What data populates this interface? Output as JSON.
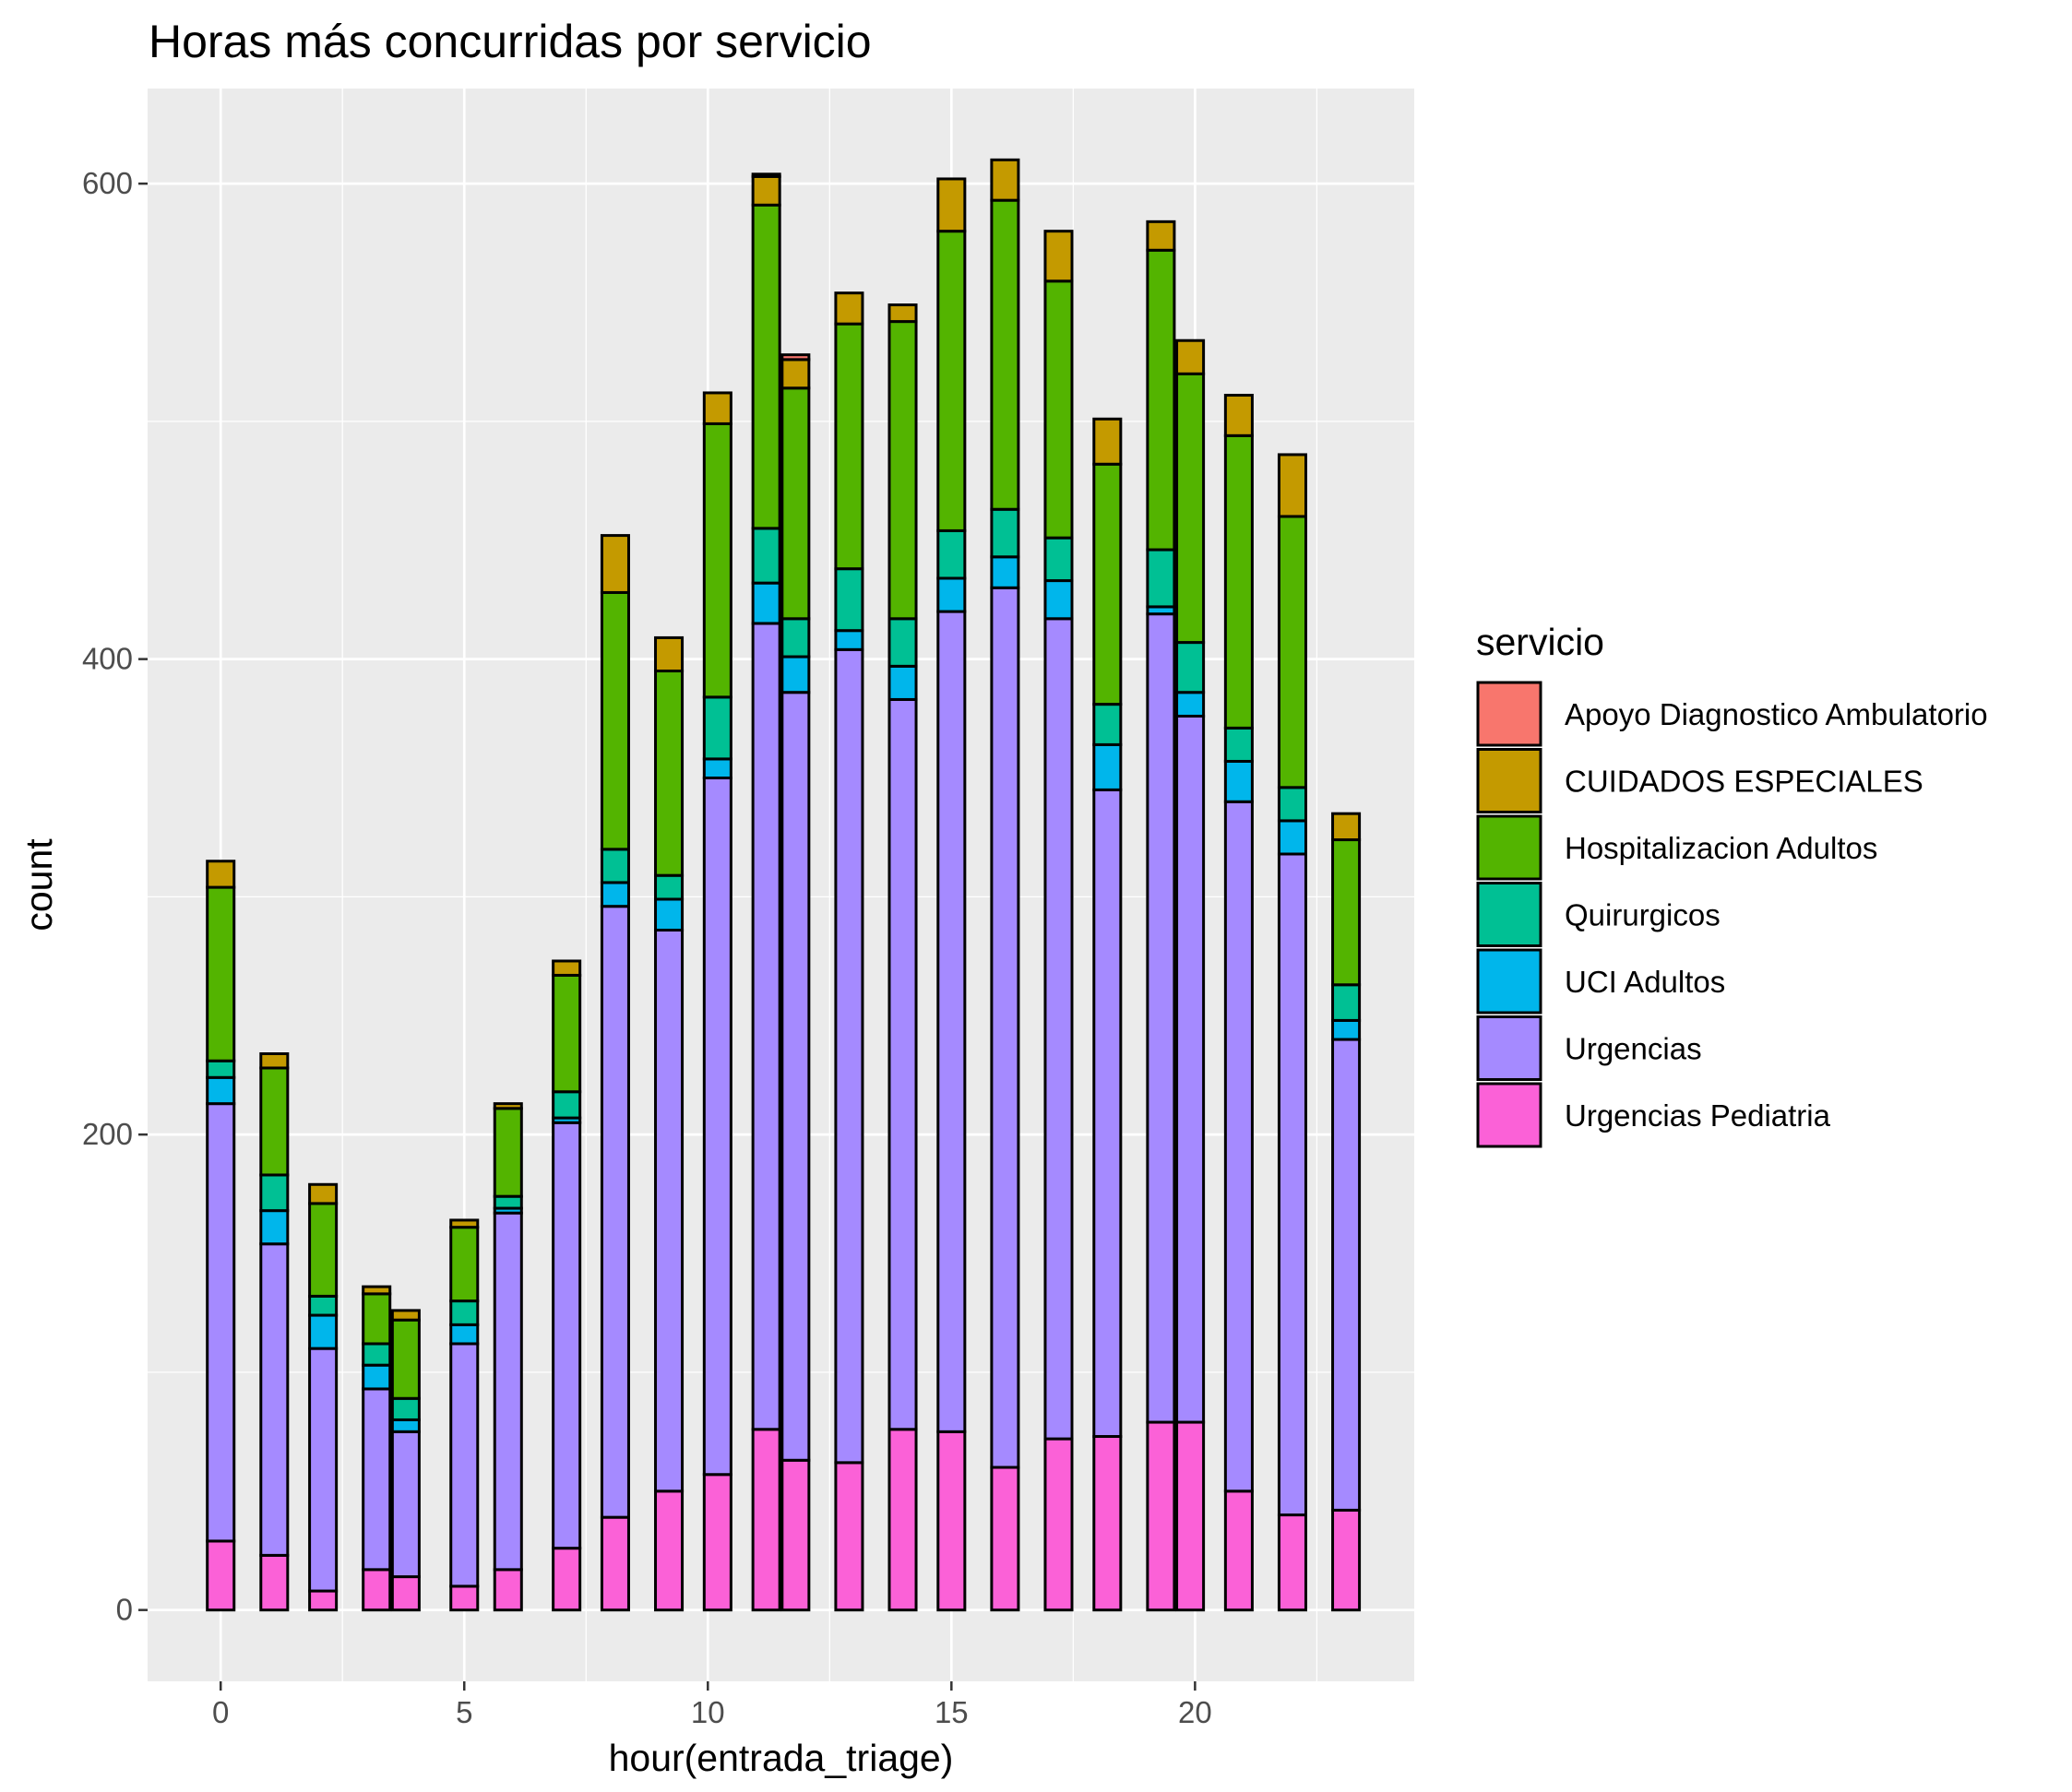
{
  "chart_data": {
    "type": "bar",
    "stacked": true,
    "title": "Horas más concurridas por servicio",
    "xlabel": "hour(entrada_triage)",
    "ylabel": "count",
    "xlim": [
      -1.5,
      24.5
    ],
    "ylim": [
      -30,
      640
    ],
    "xticks": [
      0,
      5,
      10,
      15,
      20
    ],
    "yticks": [
      0,
      200,
      400,
      600
    ],
    "grid": true,
    "background": "#ebebeb",
    "legend": {
      "title": "servicio",
      "position": "right"
    },
    "x": [
      0,
      1.1,
      2.1,
      3.2,
      3.8,
      5,
      5.9,
      7.1,
      8.1,
      9.2,
      10.2,
      11.2,
      11.8,
      12.9,
      14,
      15,
      16.1,
      17.2,
      18.2,
      19.3,
      19.9,
      20.9,
      22,
      23.1
    ],
    "series": [
      {
        "name": "Apoyo Diagnostico Ambulatorio",
        "color": "#F8766D",
        "values": [
          0,
          0,
          0,
          0,
          0,
          0,
          0,
          0,
          0,
          0,
          0,
          1,
          2,
          0,
          0,
          0,
          0,
          0,
          0,
          0,
          0,
          0,
          0,
          0
        ]
      },
      {
        "name": "CUIDADOS ESPECIALES",
        "color": "#C49A00",
        "values": [
          11,
          6,
          8,
          3,
          4,
          3,
          2,
          6,
          24,
          14,
          13,
          12,
          12,
          13,
          7,
          22,
          17,
          21,
          19,
          12,
          14,
          17,
          26,
          11
        ]
      },
      {
        "name": "Hospitalizacion Adultos",
        "color": "#53B400",
        "values": [
          73,
          45,
          39,
          21,
          33,
          31,
          37,
          49,
          108,
          86,
          115,
          136,
          97,
          103,
          125,
          126,
          130,
          108,
          101,
          126,
          113,
          123,
          114,
          61
        ]
      },
      {
        "name": "Quirurgicos",
        "color": "#00C094",
        "values": [
          7,
          15,
          8,
          9,
          9,
          10,
          5,
          11,
          14,
          10,
          26,
          23,
          16,
          26,
          20,
          20,
          20,
          18,
          17,
          24,
          21,
          14,
          14,
          15
        ]
      },
      {
        "name": "UCI Adultos",
        "color": "#00B6EB",
        "values": [
          11,
          14,
          14,
          10,
          5,
          8,
          2,
          2,
          10,
          13,
          8,
          17,
          15,
          8,
          14,
          14,
          13,
          16,
          19,
          3,
          10,
          17,
          14,
          8
        ]
      },
      {
        "name": "Urgencias",
        "color": "#A58AFF",
        "values": [
          184,
          131,
          102,
          76,
          61,
          102,
          150,
          179,
          257,
          236,
          293,
          339,
          323,
          342,
          307,
          345,
          370,
          345,
          272,
          340,
          297,
          290,
          278,
          198
        ]
      },
      {
        "name": "Urgencias Pediatria",
        "color": "#FB61D7",
        "values": [
          29,
          23,
          8,
          17,
          14,
          10,
          17,
          26,
          39,
          50,
          57,
          76,
          63,
          62,
          76,
          75,
          60,
          72,
          73,
          79,
          79,
          50,
          40,
          42
        ]
      }
    ]
  }
}
